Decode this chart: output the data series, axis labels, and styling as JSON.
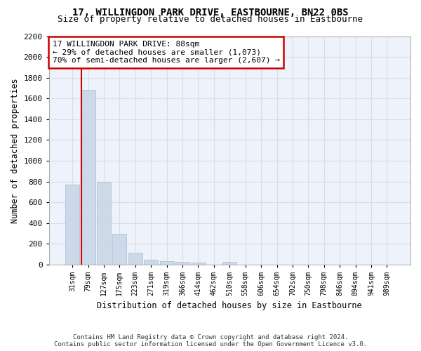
{
  "title": "17, WILLINGDON PARK DRIVE, EASTBOURNE, BN22 0BS",
  "subtitle": "Size of property relative to detached houses in Eastbourne",
  "xlabel": "Distribution of detached houses by size in Eastbourne",
  "ylabel": "Number of detached properties",
  "annotation_line1": "17 WILLINGDON PARK DRIVE: 88sqm",
  "annotation_line2": "← 29% of detached houses are smaller (1,073)",
  "annotation_line3": "70% of semi-detached houses are larger (2,607) →",
  "bar_color": "#ccd9e8",
  "bar_edge_color": "#aabbcc",
  "vline_color": "#cc0000",
  "annotation_box_edgecolor": "#cc0000",
  "background_color": "#eef2fa",
  "grid_color": "#d8dde8",
  "categories": [
    "31sqm",
    "79sqm",
    "127sqm",
    "175sqm",
    "223sqm",
    "271sqm",
    "319sqm",
    "366sqm",
    "414sqm",
    "462sqm",
    "510sqm",
    "558sqm",
    "606sqm",
    "654sqm",
    "702sqm",
    "750sqm",
    "798sqm",
    "846sqm",
    "894sqm",
    "941sqm",
    "989sqm"
  ],
  "values": [
    770,
    1680,
    795,
    300,
    115,
    45,
    35,
    27,
    22,
    0,
    25,
    0,
    0,
    0,
    0,
    0,
    0,
    0,
    0,
    0,
    0
  ],
  "ylim": [
    0,
    2200
  ],
  "yticks": [
    0,
    200,
    400,
    600,
    800,
    1000,
    1200,
    1400,
    1600,
    1800,
    2000,
    2200
  ],
  "vline_x": 0.57,
  "footnote1": "Contains HM Land Registry data © Crown copyright and database right 2024.",
  "footnote2": "Contains public sector information licensed under the Open Government Licence v3.0."
}
